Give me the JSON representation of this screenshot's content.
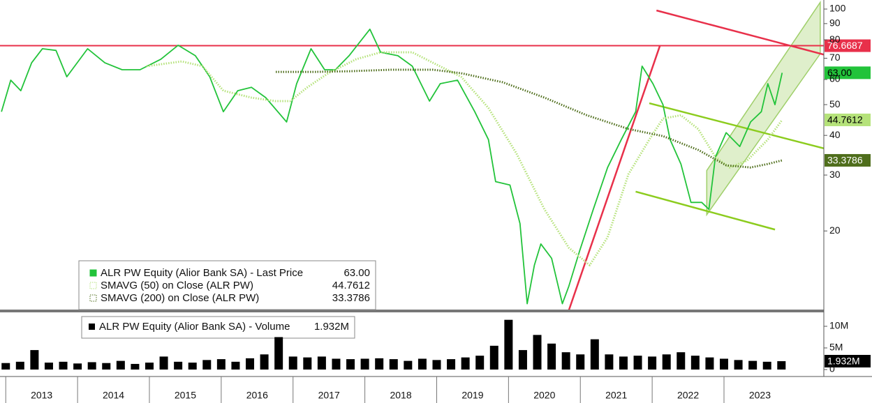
{
  "chart_data": [
    {
      "type": "line",
      "log_scale": true,
      "legend": "bottom-left",
      "xlim": [
        2012.92,
        2024.39
      ],
      "xticks": [
        2013,
        2014,
        2015,
        2016,
        2017,
        2018,
        2019,
        2020,
        2021,
        2022,
        2023
      ],
      "ylim": [
        11.25,
        106.8
      ],
      "yticks": [
        20,
        30,
        40,
        50,
        60,
        70,
        80,
        90,
        100
      ],
      "series": [
        {
          "name": "ALR PW Equity (Alior Bank SA) - Last Price",
          "color": "#22c33a",
          "style": "solid",
          "last_label": "63.00",
          "x": [
            2012.94,
            2013.07,
            2013.21,
            2013.36,
            2013.51,
            2013.7,
            2013.85,
            2014.14,
            2014.38,
            2014.62,
            2014.87,
            2015.16,
            2015.4,
            2015.64,
            2015.84,
            2016.03,
            2016.23,
            2016.42,
            2016.62,
            2016.91,
            2017.05,
            2017.25,
            2017.44,
            2017.59,
            2017.78,
            2018.07,
            2018.22,
            2018.46,
            2018.66,
            2018.9,
            2019.05,
            2019.29,
            2019.53,
            2019.72,
            2019.82,
            2020.02,
            2020.16,
            2020.26,
            2020.36,
            2020.45,
            2020.6,
            2020.75,
            2020.84,
            2020.99,
            2021.18,
            2021.38,
            2021.57,
            2021.77,
            2021.86,
            2022.01,
            2022.15,
            2022.25,
            2022.4,
            2022.54,
            2022.69,
            2022.79,
            2022.88,
            2023.03,
            2023.22,
            2023.37,
            2023.52,
            2023.61,
            2023.71,
            2023.81
          ],
          "values": [
            47.5,
            59.7,
            55.3,
            67.7,
            75.0,
            74.1,
            61.2,
            75.0,
            67.7,
            64.4,
            64.4,
            69.5,
            76.9,
            71.3,
            61.2,
            47.5,
            55.3,
            56.7,
            52.6,
            44.1,
            58.2,
            75.0,
            64.4,
            64.4,
            71.3,
            86.4,
            73.1,
            71.3,
            66.1,
            51.3,
            58.2,
            59.7,
            47.5,
            38.8,
            28.6,
            27.9,
            21.1,
            11.8,
            15.6,
            18.2,
            16.4,
            11.8,
            13.4,
            17.3,
            23.4,
            31.7,
            38.8,
            47.5,
            66.1,
            58.2,
            50.0,
            38.8,
            32.5,
            24.6,
            24.6,
            23.4,
            34.2,
            40.8,
            36.9,
            44.1,
            47.5,
            58.2,
            50.0,
            63
          ]
        },
        {
          "name": "SMAVG (50)  on Close (ALR PW)",
          "color": "#b5e27a",
          "style": "dotted",
          "last_label": "44.7612",
          "x": [
            2014.96,
            2015.45,
            2015.74,
            2016.03,
            2016.42,
            2016.76,
            2016.96,
            2017.2,
            2017.49,
            2017.88,
            2018.22,
            2018.66,
            2018.95,
            2019.34,
            2019.72,
            2020.11,
            2020.5,
            2020.84,
            2021.13,
            2021.38,
            2021.67,
            2021.96,
            2022.15,
            2022.4,
            2022.64,
            2022.88,
            2023.08,
            2023.32,
            2023.61,
            2023.81
          ],
          "values": [
            66.1,
            68.4,
            66.1,
            55.3,
            52.6,
            51.3,
            51.3,
            56.7,
            62.8,
            69.5,
            73.1,
            73.1,
            67.7,
            61.2,
            48.8,
            35.1,
            23.4,
            17.7,
            15.6,
            19.1,
            30.2,
            38.8,
            45.2,
            46.3,
            41.9,
            34.2,
            31.7,
            33.3,
            38.8,
            44.7612
          ]
        },
        {
          "name": "SMAVG (200)  on Close (ALR PW)",
          "color": "#4f6e1c",
          "style": "dotted",
          "last_label": "33.3786",
          "x": [
            2016.76,
            2017.3,
            2017.78,
            2018.36,
            2018.95,
            2019.34,
            2019.92,
            2020.5,
            2021.09,
            2021.67,
            2022.15,
            2022.64,
            2023.03,
            2023.37,
            2023.61,
            2023.81
          ],
          "values": [
            63.4,
            63.4,
            63.7,
            64.4,
            64.4,
            62.8,
            58.8,
            52.6,
            46.3,
            41.9,
            39.8,
            36.0,
            32.2,
            31.7,
            32.5,
            33.3786
          ]
        }
      ],
      "reference_line": {
        "value": 76.6687,
        "label": "76.6687",
        "color": "#e8304a"
      },
      "trendlines": [
        {
          "color": "#e8304a",
          "x": [
            2022.06,
            2024.39
          ],
          "values": [
            99.0,
            71.9
          ]
        },
        {
          "color": "#e8304a",
          "x": [
            2020.84,
            2022.11
          ],
          "values": [
            11.25,
            76.9
          ]
        },
        {
          "color": "#8ccc1e",
          "x": [
            2021.96,
            2024.39
          ],
          "values": [
            50.5,
            36.4
          ]
        },
        {
          "color": "#8ccc1e",
          "x": [
            2021.77,
            2023.71
          ],
          "values": [
            26.6,
            20.2
          ]
        }
      ],
      "channel": {
        "color": "#9fcf6a",
        "x": [
          2022.76,
          2024.34
        ],
        "upper": [
          31.0,
          105
        ],
        "lower": [
          22.5,
          72.3
        ]
      }
    },
    {
      "type": "bar",
      "color": "#000000",
      "xlim": [
        2012.92,
        2024.39
      ],
      "ylim": [
        0,
        12.9
      ],
      "yticks": [
        0,
        {
          "value": 5,
          "label": "5M"
        },
        {
          "value": 10,
          "label": "10M"
        }
      ],
      "series": [
        {
          "name": "ALR PW Equity (Alior Bank SA) - Volume",
          "color": "#000000",
          "last_label": "1.932M",
          "x": [
            2013.0,
            2013.2,
            2013.4,
            2013.6,
            2013.8,
            2014.0,
            2014.2,
            2014.4,
            2014.6,
            2014.8,
            2015.0,
            2015.2,
            2015.4,
            2015.6,
            2015.8,
            2016.0,
            2016.2,
            2016.4,
            2016.6,
            2016.8,
            2017.0,
            2017.2,
            2017.4,
            2017.6,
            2017.8,
            2018.0,
            2018.2,
            2018.4,
            2018.6,
            2018.8,
            2019.0,
            2019.2,
            2019.4,
            2019.6,
            2019.8,
            2020.0,
            2020.2,
            2020.4,
            2020.6,
            2020.8,
            2021.0,
            2021.2,
            2021.4,
            2021.6,
            2021.8,
            2022.0,
            2022.2,
            2022.4,
            2022.6,
            2022.8,
            2023.0,
            2023.2,
            2023.4,
            2023.6,
            2023.8
          ],
          "values": [
            1.5,
            1.8,
            4.5,
            1.6,
            1.8,
            1.4,
            1.7,
            1.5,
            2.0,
            1.3,
            1.6,
            3.0,
            1.8,
            1.6,
            2.2,
            2.4,
            1.8,
            2.6,
            3.5,
            7.5,
            3.0,
            2.8,
            3.0,
            2.5,
            2.4,
            2.5,
            2.6,
            2.4,
            2.0,
            2.5,
            2.2,
            2.4,
            2.8,
            3.2,
            5.5,
            11.5,
            4.5,
            8.0,
            6.0,
            4.0,
            3.5,
            7.0,
            3.5,
            3.0,
            3.2,
            3.0,
            3.5,
            4.0,
            3.2,
            2.8,
            2.5,
            2.2,
            2.0,
            1.8,
            1.932
          ]
        }
      ]
    }
  ]
}
